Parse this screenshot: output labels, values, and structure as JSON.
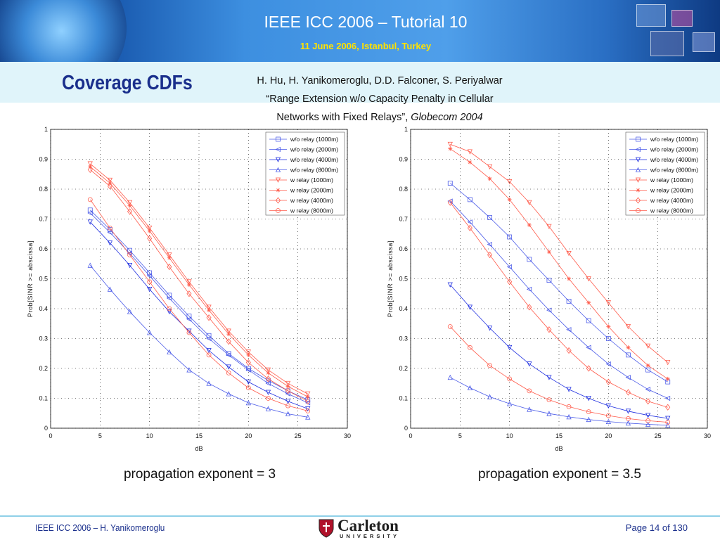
{
  "header": {
    "title": "IEEE ICC 2006 – Tutorial 10",
    "subtitle": "11 June 2006, Istanbul, Turkey"
  },
  "slide": {
    "title": "Coverage CDFs",
    "citation": {
      "line1": "H. Hu, H. Yanikomeroglu, D.D. Falconer, S. Periyalwar",
      "line2": "“Range Extension w/o Capacity Penalty in Cellular",
      "line3_prefix": "Networks with Fixed Relays”, ",
      "line3_venue": "Globecom 2004"
    }
  },
  "captions": {
    "left": "propagation exponent = 3",
    "right": "propagation exponent = 3.5"
  },
  "footer": {
    "left": "IEEE ICC 2006 – H. Yanikomeroglu",
    "page": "Page 14 of 130",
    "logo_name": "Carleton",
    "logo_sub": "UNIVERSITY"
  },
  "colors": {
    "without_relay": "#4a5ae8",
    "with_relay": "#ff5a4a",
    "title": "#1a2f8c",
    "banner_subtitle": "#ffe200"
  },
  "chart_data": [
    {
      "type": "line",
      "title": "",
      "xlabel": "dB",
      "ylabel": "Prob[SINR >= abscissa]",
      "xlim": [
        0,
        30
      ],
      "ylim": [
        0,
        1
      ],
      "xticks": [
        "0",
        "5",
        "10",
        "15",
        "20",
        "25",
        "30"
      ],
      "yticks": [
        "0",
        "0.1",
        "0.2",
        "0.3",
        "0.4",
        "0.5",
        "0.6",
        "0.7",
        "0.8",
        "0.9",
        "1"
      ],
      "grid": true,
      "legend_position": "top-right",
      "x": [
        4,
        6,
        8,
        10,
        12,
        14,
        16,
        18,
        20,
        22,
        24,
        26
      ],
      "series": [
        {
          "name": "w/o relay (1000m)",
          "color": "#4a5ae8",
          "marker": "square",
          "values": [
            0.73,
            0.665,
            0.595,
            0.52,
            0.445,
            0.375,
            0.31,
            0.25,
            0.2,
            0.16,
            0.125,
            0.095
          ]
        },
        {
          "name": "w/o relay (2000m)",
          "color": "#4a5ae8",
          "marker": "triangle-left",
          "values": [
            0.72,
            0.655,
            0.585,
            0.51,
            0.435,
            0.365,
            0.3,
            0.245,
            0.195,
            0.15,
            0.115,
            0.085
          ]
        },
        {
          "name": "w/o relay (4000m)",
          "color": "#1e2ee0",
          "marker": "triangle-down",
          "values": [
            0.69,
            0.62,
            0.545,
            0.465,
            0.39,
            0.325,
            0.26,
            0.205,
            0.155,
            0.12,
            0.09,
            0.065
          ]
        },
        {
          "name": "w/o relay (8000m)",
          "color": "#4a5ae8",
          "marker": "triangle-up",
          "values": [
            0.545,
            0.465,
            0.39,
            0.32,
            0.255,
            0.195,
            0.15,
            0.115,
            0.085,
            0.065,
            0.048,
            0.037
          ]
        },
        {
          "name": "w relay (1000m)",
          "color": "#ff5a4a",
          "marker": "triangle-down",
          "values": [
            0.885,
            0.83,
            0.755,
            0.67,
            0.58,
            0.49,
            0.405,
            0.325,
            0.255,
            0.195,
            0.15,
            0.115
          ]
        },
        {
          "name": "w relay (2000m)",
          "color": "#ff5a4a",
          "marker": "star",
          "values": [
            0.875,
            0.82,
            0.745,
            0.66,
            0.57,
            0.48,
            0.395,
            0.315,
            0.245,
            0.185,
            0.14,
            0.105
          ]
        },
        {
          "name": "w relay (4000m)",
          "color": "#ff5a4a",
          "marker": "diamond",
          "values": [
            0.865,
            0.81,
            0.725,
            0.635,
            0.54,
            0.45,
            0.37,
            0.29,
            0.22,
            0.165,
            0.125,
            0.09
          ]
        },
        {
          "name": "w relay (8000m)",
          "color": "#ff5a4a",
          "marker": "circle",
          "values": [
            0.765,
            0.67,
            0.58,
            0.49,
            0.4,
            0.32,
            0.245,
            0.185,
            0.135,
            0.1,
            0.075,
            0.058
          ]
        }
      ]
    },
    {
      "type": "line",
      "title": "",
      "xlabel": "dB",
      "ylabel": "Prob[SINR >= abscissa]",
      "xlim": [
        0,
        30
      ],
      "ylim": [
        0,
        1
      ],
      "xticks": [
        "0",
        "5",
        "10",
        "15",
        "20",
        "25",
        "30"
      ],
      "yticks": [
        "0",
        "0.1",
        "0.2",
        "0.3",
        "0.4",
        "0.5",
        "0.6",
        "0.7",
        "0.8",
        "0.9",
        "1"
      ],
      "grid": true,
      "legend_position": "top-right",
      "x": [
        4,
        6,
        8,
        10,
        12,
        14,
        16,
        18,
        20,
        22,
        24,
        26
      ],
      "series": [
        {
          "name": "w/o relay (1000m)",
          "color": "#4a5ae8",
          "marker": "square",
          "values": [
            0.82,
            0.765,
            0.705,
            0.64,
            0.565,
            0.495,
            0.425,
            0.36,
            0.3,
            0.245,
            0.195,
            0.155
          ]
        },
        {
          "name": "w/o relay (2000m)",
          "color": "#4a5ae8",
          "marker": "triangle-left",
          "values": [
            0.76,
            0.69,
            0.615,
            0.54,
            0.465,
            0.395,
            0.33,
            0.27,
            0.215,
            0.17,
            0.13,
            0.1
          ]
        },
        {
          "name": "w/o relay (4000m)",
          "color": "#1e2ee0",
          "marker": "triangle-down",
          "values": [
            0.48,
            0.405,
            0.335,
            0.27,
            0.215,
            0.17,
            0.13,
            0.1,
            0.075,
            0.057,
            0.043,
            0.033
          ]
        },
        {
          "name": "w/o relay (8000m)",
          "color": "#4a5ae8",
          "marker": "triangle-up",
          "values": [
            0.17,
            0.135,
            0.105,
            0.082,
            0.063,
            0.049,
            0.038,
            0.029,
            0.022,
            0.017,
            0.013,
            0.01
          ]
        },
        {
          "name": "w relay (1000m)",
          "color": "#ff5a4a",
          "marker": "triangle-down",
          "values": [
            0.95,
            0.925,
            0.875,
            0.825,
            0.755,
            0.675,
            0.585,
            0.5,
            0.42,
            0.34,
            0.275,
            0.22
          ]
        },
        {
          "name": "w relay (2000m)",
          "color": "#ff5a4a",
          "marker": "star",
          "values": [
            0.935,
            0.89,
            0.835,
            0.765,
            0.68,
            0.59,
            0.5,
            0.42,
            0.34,
            0.27,
            0.21,
            0.165
          ]
        },
        {
          "name": "w relay (4000m)",
          "color": "#ff5a4a",
          "marker": "diamond",
          "values": [
            0.755,
            0.67,
            0.58,
            0.49,
            0.405,
            0.33,
            0.26,
            0.2,
            0.155,
            0.12,
            0.09,
            0.07
          ]
        },
        {
          "name": "w relay (8000m)",
          "color": "#ff5a4a",
          "marker": "circle",
          "values": [
            0.34,
            0.27,
            0.21,
            0.165,
            0.125,
            0.095,
            0.072,
            0.055,
            0.042,
            0.032,
            0.025,
            0.02
          ]
        }
      ]
    }
  ]
}
